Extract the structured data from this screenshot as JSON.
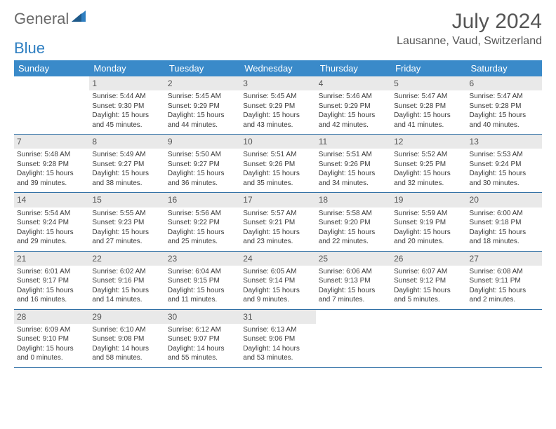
{
  "brand": {
    "word1": "General",
    "word2": "Blue"
  },
  "title": "July 2024",
  "location": "Lausanne, Vaud, Switzerland",
  "colors": {
    "header_bg": "#3a8ac9",
    "header_text": "#ffffff",
    "daynum_bg": "#e9e9e9",
    "row_border": "#2f6fa5",
    "logo_gray": "#6a6a6a",
    "logo_blue": "#2f7fc1"
  },
  "fonts": {
    "title_size": 30,
    "location_size": 16,
    "dayname_size": 13,
    "cell_size": 10,
    "daynum_size": 12
  },
  "day_names": [
    "Sunday",
    "Monday",
    "Tuesday",
    "Wednesday",
    "Thursday",
    "Friday",
    "Saturday"
  ],
  "weeks": [
    [
      {
        "n": "",
        "lines": [
          "",
          "",
          ""
        ]
      },
      {
        "n": "1",
        "lines": [
          "Sunrise: 5:44 AM",
          "Sunset: 9:30 PM",
          "Daylight: 15 hours and 45 minutes."
        ]
      },
      {
        "n": "2",
        "lines": [
          "Sunrise: 5:45 AM",
          "Sunset: 9:29 PM",
          "Daylight: 15 hours and 44 minutes."
        ]
      },
      {
        "n": "3",
        "lines": [
          "Sunrise: 5:45 AM",
          "Sunset: 9:29 PM",
          "Daylight: 15 hours and 43 minutes."
        ]
      },
      {
        "n": "4",
        "lines": [
          "Sunrise: 5:46 AM",
          "Sunset: 9:29 PM",
          "Daylight: 15 hours and 42 minutes."
        ]
      },
      {
        "n": "5",
        "lines": [
          "Sunrise: 5:47 AM",
          "Sunset: 9:28 PM",
          "Daylight: 15 hours and 41 minutes."
        ]
      },
      {
        "n": "6",
        "lines": [
          "Sunrise: 5:47 AM",
          "Sunset: 9:28 PM",
          "Daylight: 15 hours and 40 minutes."
        ]
      }
    ],
    [
      {
        "n": "7",
        "lines": [
          "Sunrise: 5:48 AM",
          "Sunset: 9:28 PM",
          "Daylight: 15 hours and 39 minutes."
        ]
      },
      {
        "n": "8",
        "lines": [
          "Sunrise: 5:49 AM",
          "Sunset: 9:27 PM",
          "Daylight: 15 hours and 38 minutes."
        ]
      },
      {
        "n": "9",
        "lines": [
          "Sunrise: 5:50 AM",
          "Sunset: 9:27 PM",
          "Daylight: 15 hours and 36 minutes."
        ]
      },
      {
        "n": "10",
        "lines": [
          "Sunrise: 5:51 AM",
          "Sunset: 9:26 PM",
          "Daylight: 15 hours and 35 minutes."
        ]
      },
      {
        "n": "11",
        "lines": [
          "Sunrise: 5:51 AM",
          "Sunset: 9:26 PM",
          "Daylight: 15 hours and 34 minutes."
        ]
      },
      {
        "n": "12",
        "lines": [
          "Sunrise: 5:52 AM",
          "Sunset: 9:25 PM",
          "Daylight: 15 hours and 32 minutes."
        ]
      },
      {
        "n": "13",
        "lines": [
          "Sunrise: 5:53 AM",
          "Sunset: 9:24 PM",
          "Daylight: 15 hours and 30 minutes."
        ]
      }
    ],
    [
      {
        "n": "14",
        "lines": [
          "Sunrise: 5:54 AM",
          "Sunset: 9:24 PM",
          "Daylight: 15 hours and 29 minutes."
        ]
      },
      {
        "n": "15",
        "lines": [
          "Sunrise: 5:55 AM",
          "Sunset: 9:23 PM",
          "Daylight: 15 hours and 27 minutes."
        ]
      },
      {
        "n": "16",
        "lines": [
          "Sunrise: 5:56 AM",
          "Sunset: 9:22 PM",
          "Daylight: 15 hours and 25 minutes."
        ]
      },
      {
        "n": "17",
        "lines": [
          "Sunrise: 5:57 AM",
          "Sunset: 9:21 PM",
          "Daylight: 15 hours and 23 minutes."
        ]
      },
      {
        "n": "18",
        "lines": [
          "Sunrise: 5:58 AM",
          "Sunset: 9:20 PM",
          "Daylight: 15 hours and 22 minutes."
        ]
      },
      {
        "n": "19",
        "lines": [
          "Sunrise: 5:59 AM",
          "Sunset: 9:19 PM",
          "Daylight: 15 hours and 20 minutes."
        ]
      },
      {
        "n": "20",
        "lines": [
          "Sunrise: 6:00 AM",
          "Sunset: 9:18 PM",
          "Daylight: 15 hours and 18 minutes."
        ]
      }
    ],
    [
      {
        "n": "21",
        "lines": [
          "Sunrise: 6:01 AM",
          "Sunset: 9:17 PM",
          "Daylight: 15 hours and 16 minutes."
        ]
      },
      {
        "n": "22",
        "lines": [
          "Sunrise: 6:02 AM",
          "Sunset: 9:16 PM",
          "Daylight: 15 hours and 14 minutes."
        ]
      },
      {
        "n": "23",
        "lines": [
          "Sunrise: 6:04 AM",
          "Sunset: 9:15 PM",
          "Daylight: 15 hours and 11 minutes."
        ]
      },
      {
        "n": "24",
        "lines": [
          "Sunrise: 6:05 AM",
          "Sunset: 9:14 PM",
          "Daylight: 15 hours and 9 minutes."
        ]
      },
      {
        "n": "25",
        "lines": [
          "Sunrise: 6:06 AM",
          "Sunset: 9:13 PM",
          "Daylight: 15 hours and 7 minutes."
        ]
      },
      {
        "n": "26",
        "lines": [
          "Sunrise: 6:07 AM",
          "Sunset: 9:12 PM",
          "Daylight: 15 hours and 5 minutes."
        ]
      },
      {
        "n": "27",
        "lines": [
          "Sunrise: 6:08 AM",
          "Sunset: 9:11 PM",
          "Daylight: 15 hours and 2 minutes."
        ]
      }
    ],
    [
      {
        "n": "28",
        "lines": [
          "Sunrise: 6:09 AM",
          "Sunset: 9:10 PM",
          "Daylight: 15 hours and 0 minutes."
        ]
      },
      {
        "n": "29",
        "lines": [
          "Sunrise: 6:10 AM",
          "Sunset: 9:08 PM",
          "Daylight: 14 hours and 58 minutes."
        ]
      },
      {
        "n": "30",
        "lines": [
          "Sunrise: 6:12 AM",
          "Sunset: 9:07 PM",
          "Daylight: 14 hours and 55 minutes."
        ]
      },
      {
        "n": "31",
        "lines": [
          "Sunrise: 6:13 AM",
          "Sunset: 9:06 PM",
          "Daylight: 14 hours and 53 minutes."
        ]
      },
      {
        "n": "",
        "lines": [
          "",
          "",
          ""
        ]
      },
      {
        "n": "",
        "lines": [
          "",
          "",
          ""
        ]
      },
      {
        "n": "",
        "lines": [
          "",
          "",
          ""
        ]
      }
    ]
  ]
}
